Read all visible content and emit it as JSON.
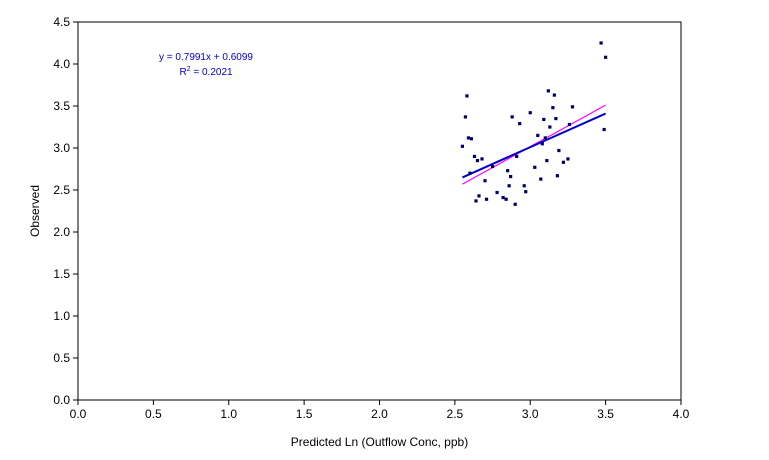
{
  "chart_data": {
    "type": "scatter",
    "xlabel": "Predicted Ln (Outflow Conc, ppb)",
    "ylabel": "Observed",
    "xlim": [
      0,
      4
    ],
    "ylim": [
      0,
      4.5
    ],
    "xticks": [
      "0.0",
      "0.5",
      "1.0",
      "1.5",
      "2.0",
      "2.5",
      "3.0",
      "3.5",
      "4.0"
    ],
    "yticks": [
      "0.0",
      "0.5",
      "1.0",
      "1.5",
      "2.0",
      "2.5",
      "3.0",
      "3.5",
      "4.0",
      "4.5"
    ],
    "grid": false,
    "annotations": {
      "equation": "y = 0.7991x + 0.6099",
      "r2_prefix": "R",
      "r2_sup": "2",
      "r2_value": " = 0.2021"
    },
    "points": {
      "x": [
        2.55,
        2.57,
        2.58,
        2.59,
        2.6,
        2.61,
        2.63,
        2.64,
        2.65,
        2.66,
        2.68,
        2.7,
        2.71,
        2.75,
        2.78,
        2.82,
        2.84,
        2.85,
        2.86,
        2.87,
        2.88,
        2.9,
        2.91,
        2.93,
        2.96,
        2.97,
        3.0,
        3.03,
        3.05,
        3.07,
        3.08,
        3.09,
        3.1,
        3.11,
        3.12,
        3.13,
        3.15,
        3.16,
        3.17,
        3.18,
        3.19,
        3.22,
        3.25,
        3.26,
        3.28,
        3.47,
        3.49,
        3.5
      ],
      "y": [
        3.02,
        3.37,
        3.62,
        3.12,
        2.7,
        3.11,
        2.9,
        2.37,
        2.85,
        2.43,
        2.87,
        2.61,
        2.39,
        2.78,
        2.47,
        2.41,
        2.39,
        2.73,
        2.55,
        2.66,
        3.37,
        2.33,
        2.9,
        3.29,
        2.55,
        2.48,
        3.42,
        2.77,
        3.15,
        2.63,
        3.05,
        3.34,
        3.12,
        2.85,
        3.68,
        3.25,
        3.48,
        3.63,
        3.35,
        2.67,
        2.97,
        2.83,
        2.87,
        3.28,
        3.49,
        4.25,
        3.22,
        4.08
      ]
    },
    "series": [
      {
        "name": "",
        "type": "trendline",
        "x": [
          2.55,
          3.5
        ],
        "y": [
          2.65,
          3.41
        ],
        "color": "#0000cc"
      },
      {
        "name": "",
        "type": "reference",
        "x": [
          2.55,
          3.5
        ],
        "y": [
          2.57,
          3.51
        ],
        "color": "#ff00ff"
      }
    ],
    "colors": {
      "points": "#000066",
      "trendline": "#0000cc",
      "reference": "#ff00ff",
      "axis": "#000000",
      "equation_text": "#0000cc"
    }
  }
}
